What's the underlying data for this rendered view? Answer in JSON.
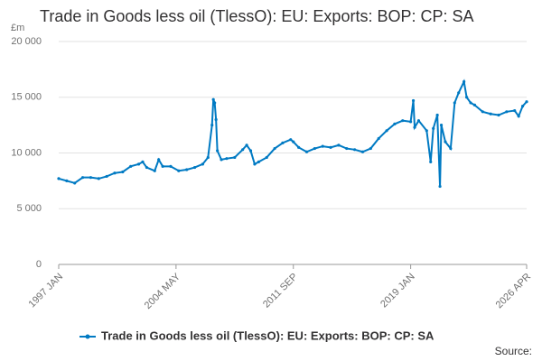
{
  "chart_data": {
    "type": "line",
    "title": "Trade in Goods less oil (TlessO): EU: Exports: BOP: CP: SA",
    "y_axis_label": "£m",
    "source": "Source:",
    "x": [
      "1997 JAN",
      "1997 JUL",
      "1998 JAN",
      "1998 JUL",
      "1999 JAN",
      "1999 JUL",
      "2000 JAN",
      "2000 JUL",
      "2001 JAN",
      "2001 JUL",
      "2002 JAN",
      "2002 APR",
      "2002 JUL",
      "2003 JAN",
      "2003 APR",
      "2003 JUL",
      "2004 JAN",
      "2004 JUL",
      "2005 JAN",
      "2005 JUL",
      "2006 JAN",
      "2006 MAY",
      "2006 AUG",
      "2006 SEP",
      "2006 OCT",
      "2006 NOV",
      "2006 DEC",
      "2007 MAR",
      "2007 JUL",
      "2008 JAN",
      "2008 JUL",
      "2008 OCT",
      "2009 JAN",
      "2009 APR",
      "2009 JUL",
      "2010 JAN",
      "2010 JUL",
      "2011 JAN",
      "2011 JUL",
      "2011 SEP",
      "2012 JAN",
      "2012 JUL",
      "2013 JAN",
      "2013 JUL",
      "2014 JAN",
      "2014 JUL",
      "2015 JAN",
      "2015 JUL",
      "2016 JAN",
      "2016 JUL",
      "2017 JAN",
      "2017 JUL",
      "2018 JAN",
      "2018 JUL",
      "2019 JAN",
      "2019 MAR",
      "2019 APR",
      "2019 JUL",
      "2020 JAN",
      "2020 APR",
      "2020 JUN",
      "2020 SEP",
      "2020 NOV",
      "2020 DEC",
      "2021 MAR",
      "2021 JUL",
      "2021 OCT",
      "2022 JAN",
      "2022 MAY",
      "2022 JUL",
      "2022 OCT",
      "2023 JAN",
      "2023 JUL",
      "2024 JAN",
      "2024 JUL",
      "2025 JAN",
      "2025 JUL",
      "2025 OCT",
      "2026 JAN",
      "2026 APR"
    ],
    "series": [
      {
        "name": "Trade in Goods less oil (TlessO): EU: Exports: BOP: CP: SA",
        "color": "#007ac3",
        "values": [
          7700,
          7500,
          7300,
          7800,
          7800,
          7700,
          7900,
          8200,
          8300,
          8800,
          9000,
          9200,
          8700,
          8400,
          9400,
          8800,
          8800,
          8400,
          8500,
          8700,
          9000,
          9600,
          12500,
          14800,
          14500,
          13000,
          10200,
          9400,
          9500,
          9600,
          10300,
          10700,
          10200,
          9000,
          9200,
          9600,
          10400,
          10900,
          11200,
          11000,
          10500,
          10100,
          10400,
          10600,
          10500,
          10700,
          10400,
          10300,
          10100,
          10400,
          11300,
          12000,
          12600,
          12900,
          12800,
          14700,
          12300,
          12900,
          12000,
          9200,
          12200,
          13400,
          7000,
          12500,
          11000,
          10400,
          14500,
          15400,
          16400,
          15000,
          14500,
          14300,
          13700,
          13500,
          13400,
          13700,
          13800,
          13300,
          14200,
          14600
        ]
      }
    ],
    "xticks": [
      "1997 JAN",
      "2004 MAY",
      "2011 SEP",
      "2019 JAN",
      "2026 APR"
    ],
    "ylim": [
      0,
      20000
    ],
    "yticks": [
      0,
      {
        "value": 5000,
        "label": "5 000"
      },
      {
        "value": 10000,
        "label": "10 000"
      },
      {
        "value": 15000,
        "label": "15 000"
      },
      {
        "value": 20000,
        "label": "20 000"
      }
    ],
    "grid": true
  }
}
